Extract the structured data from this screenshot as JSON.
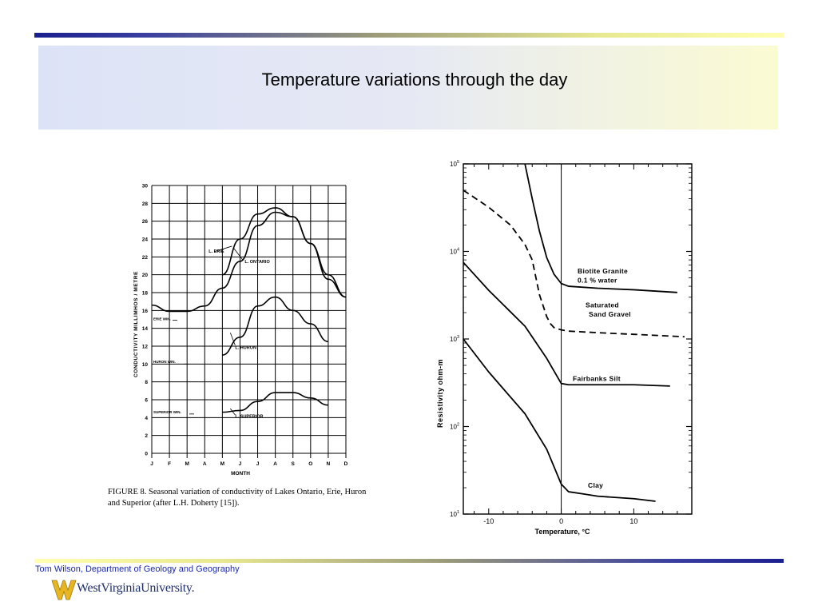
{
  "slide": {
    "title": "Temperature variations through the day",
    "footer": "Tom Wilson, Department of Geology and Geography",
    "logo_text": "WestVirginiaUniversity."
  },
  "chart_data": [
    {
      "type": "line",
      "ylabel": "CONDUCTIVITY  MILLIMHOS / METRE",
      "xlabel": "MONTH",
      "categories": [
        "J",
        "F",
        "M",
        "A",
        "M",
        "J",
        "J",
        "A",
        "S",
        "O",
        "N",
        "D"
      ],
      "yticks": [
        0,
        2,
        4,
        6,
        8,
        10,
        12,
        14,
        16,
        18,
        20,
        22,
        24,
        26,
        28,
        30
      ],
      "ylim": [
        0,
        30
      ],
      "series": [
        {
          "name": "L. ERIE",
          "x": [
            1,
            2,
            3,
            4,
            5,
            6,
            7,
            8,
            9,
            10,
            11,
            12
          ],
          "values": [
            16.6,
            15.9,
            15.9,
            16.5,
            18.5,
            21.5,
            25.5,
            27.0,
            26.5,
            23.5,
            20.0,
            17.5
          ]
        },
        {
          "name": "L. ONTARIO",
          "x": [
            5,
            6,
            7,
            8,
            9,
            10,
            11,
            12
          ],
          "values": [
            20.0,
            24.0,
            26.8,
            27.5,
            26.5,
            23.5,
            19.5,
            17.5
          ]
        },
        {
          "name": "L. HURON",
          "x": [
            5,
            6,
            7,
            8,
            9,
            10,
            11
          ],
          "values": [
            11.0,
            13.0,
            16.5,
            17.5,
            16.0,
            14.5,
            12.5
          ]
        },
        {
          "name": "L. SUPERIOR",
          "x": [
            5,
            6,
            7,
            8,
            9,
            10,
            11
          ],
          "values": [
            4.6,
            4.8,
            5.8,
            6.8,
            6.8,
            6.2,
            5.4
          ]
        }
      ],
      "annotations": [
        "ERIE WIN.",
        "HURON WIN.",
        "SUPERIOR WIN."
      ],
      "caption": "FIGURE 8.  Seasonal variation of conductivity of Lakes Ontario, Erie, Huron and Superior (after L.H. Doherty [15])."
    },
    {
      "type": "line",
      "xlabel": "Temperature,   °C",
      "ylabel": "Resistivity    ohm-m",
      "xticks": [
        -10,
        0,
        10
      ],
      "xlim": [
        -13.5,
        18
      ],
      "ylim": [
        10,
        100000
      ],
      "yscale": "log",
      "series": [
        {
          "name": "Biotite Granite 0.1 % water",
          "x": [
            -5,
            -4,
            -3,
            -2,
            -1,
            0,
            1,
            5,
            10,
            16
          ],
          "values": [
            100000,
            40000,
            17000,
            8500,
            5500,
            4300,
            4000,
            3800,
            3650,
            3400
          ]
        },
        {
          "name": "Saturated Sand Gravel",
          "x": [
            -13.5,
            -10,
            -7,
            -5,
            -4,
            -3,
            -2,
            -1.5,
            -1,
            0,
            1,
            5,
            10,
            17
          ],
          "values": [
            50000,
            32000,
            20000,
            12000,
            8000,
            3200,
            1800,
            1500,
            1350,
            1270,
            1230,
            1180,
            1130,
            1060
          ]
        },
        {
          "name": "Fairbanks Silt",
          "x": [
            -13.5,
            -10,
            -5,
            -2,
            0,
            1,
            5,
            10,
            15
          ],
          "values": [
            7500,
            3600,
            1400,
            600,
            310,
            300,
            300,
            300,
            290
          ]
        },
        {
          "name": "Clay",
          "x": [
            -13.5,
            -10,
            -5,
            -2,
            0,
            1,
            3,
            5,
            10,
            13
          ],
          "values": [
            1000,
            420,
            140,
            55,
            22,
            18,
            17,
            16,
            15,
            14
          ]
        }
      ]
    }
  ]
}
